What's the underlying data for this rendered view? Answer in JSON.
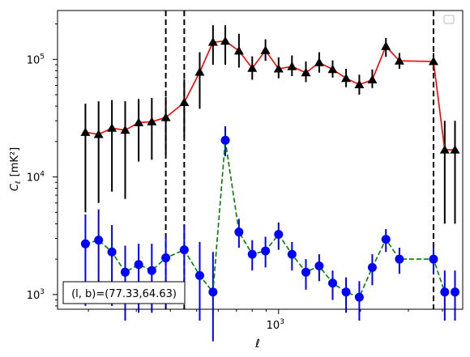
{
  "chart_data": {
    "type": "line",
    "xscale": "log",
    "yscale": "log",
    "xlabel": "ℓ",
    "ylabel_symbol": "C",
    "ylabel_sub": "ℓ",
    "ylabel_unit": "[mK²]",
    "xlim": [
      154,
      4750
    ],
    "ylim": [
      750,
      260000
    ],
    "x_ticks": [
      {
        "value": 1000,
        "base": "10",
        "exp": "3"
      }
    ],
    "y_ticks": [
      {
        "value": 1000,
        "base": "10",
        "exp": "3"
      },
      {
        "value": 10000,
        "base": "10",
        "exp": "4"
      },
      {
        "value": 100000,
        "base": "10",
        "exp": "5"
      }
    ],
    "annotation": "(l, b)=(77.33,64.63)",
    "legend_placement": "top-right",
    "grid": false,
    "vlines": [
      385,
      450,
      3710
    ],
    "series": [
      {
        "name": "",
        "line_color": "#ff0000",
        "marker_color": "#000000",
        "marker": "triangle",
        "linestyle": "solid",
        "x": [
          195,
          218,
          244,
          273,
          306,
          342,
          385,
          450,
          513,
          574,
          637,
          715,
          800,
          895,
          1000,
          1120,
          1260,
          1410,
          1580,
          1770,
          1980,
          2210,
          2480,
          2780,
          3710,
          4080,
          4450
        ],
        "y": [
          24000,
          23000,
          26000,
          25000,
          29000,
          29500,
          32000,
          43000,
          78000,
          140000,
          143000,
          118000,
          84000,
          119000,
          83000,
          87000,
          77000,
          94000,
          82000,
          69000,
          61000,
          67000,
          129000,
          97000,
          96000,
          17000,
          17000
        ],
        "err_low": [
          5000,
          6000,
          7500,
          6500,
          13500,
          14000,
          15500,
          22000,
          38000,
          90000,
          90000,
          85000,
          67000,
          97000,
          69000,
          72000,
          64000,
          77000,
          70000,
          58000,
          50000,
          57000,
          105000,
          83000,
          80000,
          4000,
          4000
        ],
        "err_high": [
          42000,
          44000,
          45000,
          44000,
          46000,
          47000,
          48000,
          68000,
          115000,
          195000,
          195000,
          165000,
          106000,
          148000,
          104000,
          108000,
          96000,
          115000,
          98000,
          83000,
          74000,
          82000,
          152000,
          113000,
          113000,
          30000,
          30000
        ]
      },
      {
        "name": "",
        "line_color": "#008000",
        "marker_color": "#0000ff",
        "marker": "circle",
        "linestyle": "dashed",
        "x": [
          195,
          218,
          244,
          273,
          306,
          342,
          385,
          450,
          513,
          574,
          637,
          715,
          800,
          895,
          1000,
          1120,
          1260,
          1410,
          1580,
          1770,
          1980,
          2210,
          2480,
          2780,
          3710,
          4080,
          4450
        ],
        "y": [
          2700,
          2900,
          2300,
          1550,
          1800,
          1600,
          2050,
          2400,
          1450,
          1050,
          20500,
          3400,
          2200,
          2350,
          3250,
          2200,
          1550,
          1750,
          1250,
          1050,
          950,
          1700,
          2950,
          2000,
          2000,
          1050,
          1050
        ],
        "err_low": [
          800,
          900,
          800,
          600,
          700,
          700,
          800,
          900,
          600,
          400,
          15000,
          2500,
          1600,
          1700,
          2400,
          1600,
          1100,
          1300,
          900,
          700,
          600,
          1200,
          2300,
          1500,
          1500,
          600,
          600
        ],
        "err_high": [
          4800,
          5300,
          3900,
          2600,
          2700,
          2700,
          3100,
          3900,
          2800,
          2300,
          27000,
          4400,
          2900,
          3100,
          4100,
          2800,
          2000,
          2200,
          1600,
          1400,
          1300,
          2200,
          3600,
          2500,
          2500,
          1600,
          1600
        ]
      }
    ]
  }
}
